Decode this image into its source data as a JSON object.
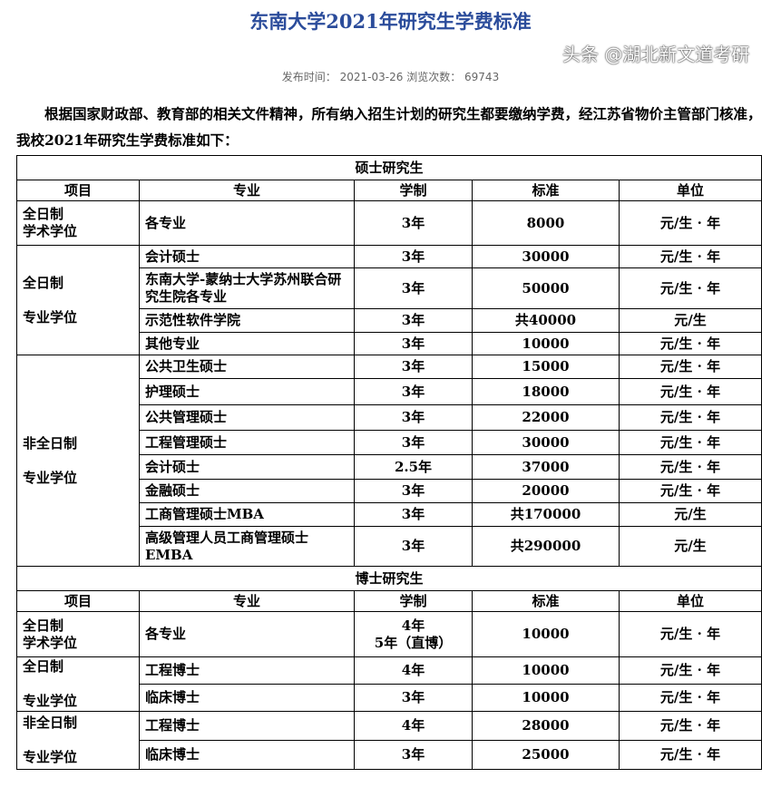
{
  "title": "东南大学2021年研究生学费标准",
  "meta": {
    "publish_label": "发布时间：",
    "publish_date": "2021-03-26",
    "views_label": "浏览次数：",
    "views": "69743"
  },
  "intro": "根据国家财政部、教育部的相关文件精神，所有纳入招生计划的研究生都要缴纳学费，经江苏省物价主管部门核准，我校2021年研究生学费标准如下：",
  "headers": [
    "项目",
    "专业",
    "学制",
    "标准",
    "单位"
  ],
  "master": {
    "title": "硕士研究生",
    "groups": [
      {
        "category": "全日制\n学术学位",
        "rows": [
          [
            "各专业",
            "3年",
            "8000",
            "元/生 · 年"
          ]
        ]
      },
      {
        "category": "全日制\n\n专业学位",
        "rows": [
          [
            "会计硕士",
            "3年",
            "30000",
            "元/生 · 年"
          ],
          [
            "东南大学-蒙纳士大学苏州联合研究生院各专业",
            "3年",
            "50000",
            "元/生 · 年"
          ],
          [
            "示范性软件学院",
            "3年",
            "共40000",
            "元/生"
          ],
          [
            "其他专业",
            "3年",
            "10000",
            "元/生 · 年"
          ]
        ]
      },
      {
        "category": "非全日制\n\n专业学位",
        "rows": [
          [
            "公共卫生硕士",
            "3年",
            "15000",
            "元/生 · 年"
          ],
          [
            "护理硕士",
            "3年",
            "18000",
            "元/生 · 年"
          ],
          [
            "公共管理硕士",
            "3年",
            "22000",
            "元/生 · 年"
          ],
          [
            "工程管理硕士",
            "3年",
            "30000",
            "元/生 · 年"
          ],
          [
            "会计硕士",
            "2.5年",
            "37000",
            "元/生 · 年"
          ],
          [
            "金融硕士",
            "3年",
            "20000",
            "元/生 · 年"
          ],
          [
            "工商管理硕士MBA",
            "3年",
            "共170000",
            "元/生"
          ],
          [
            "高级管理人员工商管理硕士EMBA",
            "3年",
            "共290000",
            "元/生"
          ]
        ]
      }
    ]
  },
  "doctor": {
    "title": "博士研究生",
    "groups": [
      {
        "category": "全日制\n学术学位",
        "rows": [
          [
            "各专业",
            "4年\n5年（直博）",
            "10000",
            "元/生 · 年"
          ]
        ]
      },
      {
        "category": "全日制\n\n专业学位",
        "rows": [
          [
            "工程博士",
            "4年",
            "10000",
            "元/生 · 年"
          ],
          [
            "临床博士",
            "3年",
            "10000",
            "元/生 · 年"
          ]
        ]
      },
      {
        "category": "非全日制\n\n专业学位",
        "rows": [
          [
            "工程博士",
            "4年",
            "28000",
            "元/生 · 年"
          ],
          [
            "临床博士",
            "3年",
            "25000",
            "元/生 · 年"
          ]
        ]
      }
    ]
  },
  "watermark": "头条 @湖北新文道考研"
}
